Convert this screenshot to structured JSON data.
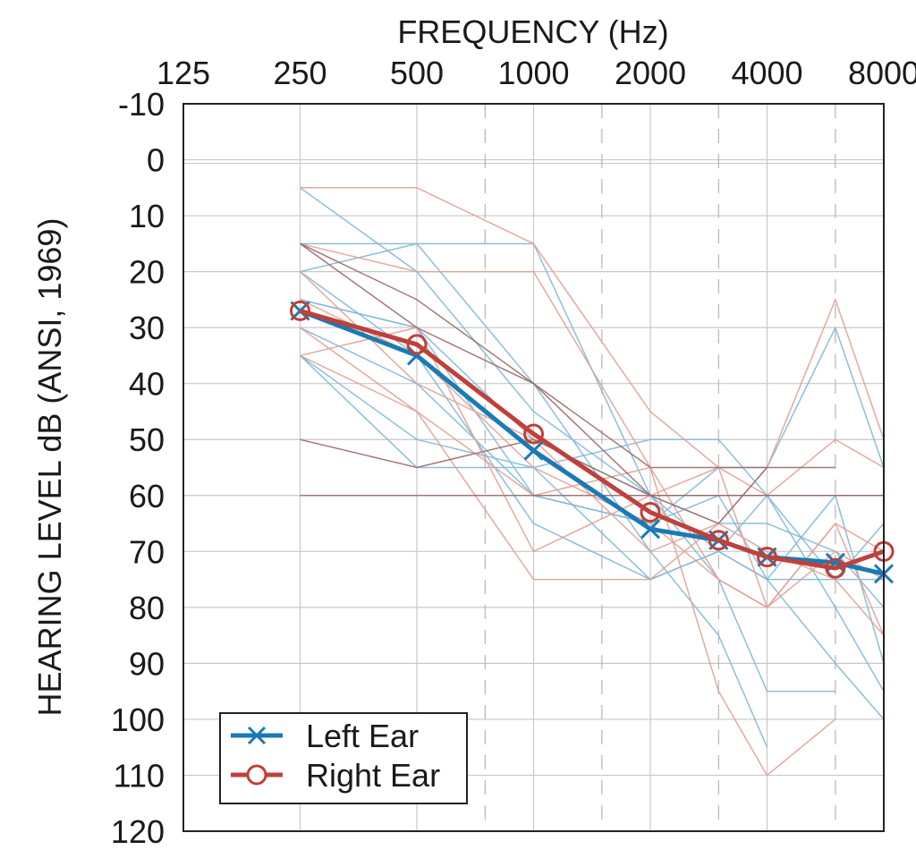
{
  "chart_data": {
    "type": "line",
    "title": "",
    "xlabel": "FREQUENCY (Hz)",
    "ylabel": "HEARING LEVEL dB (ANSI, 1969)",
    "x_scale": "log2",
    "x_range": [
      125,
      8000
    ],
    "x_ticks": [
      125,
      250,
      500,
      1000,
      2000,
      4000,
      8000
    ],
    "x_tick_labels": [
      "125",
      "250",
      "500",
      "1000",
      "2000",
      "4000",
      "8000"
    ],
    "x_minor_ticks": [
      750,
      1500,
      3000,
      6000
    ],
    "y_range": [
      -10,
      120
    ],
    "y_inverted": true,
    "y_ticks": [
      -10,
      0,
      10,
      20,
      30,
      40,
      50,
      60,
      70,
      80,
      90,
      100,
      110,
      120
    ],
    "y_tick_labels": [
      "-10",
      "0",
      "10",
      "20",
      "30",
      "40",
      "50",
      "60",
      "70",
      "80",
      "90",
      "100",
      "110",
      "120"
    ],
    "grid": true,
    "legend_position": "bottom-left",
    "x": [
      250,
      500,
      1000,
      2000,
      3000,
      4000,
      6000,
      8000
    ],
    "series": [
      {
        "name": "Left Ear",
        "color": "#1a7ab5",
        "marker": "x-icon",
        "values": [
          27,
          35,
          52,
          66,
          68,
          71,
          72,
          74
        ]
      },
      {
        "name": "Right Ear",
        "color": "#c0403a",
        "marker": "circle-icon",
        "values": [
          27,
          33,
          49,
          63,
          68,
          71,
          73,
          70
        ]
      }
    ],
    "individual_left": [
      [
        5,
        20,
        45,
        60,
        75,
        95,
        95,
        null
      ],
      [
        15,
        15,
        15,
        60,
        65,
        65,
        70,
        80
      ],
      [
        20,
        15,
        40,
        70,
        85,
        105,
        null,
        null
      ],
      [
        30,
        40,
        60,
        65,
        55,
        55,
        30,
        55
      ],
      [
        35,
        50,
        55,
        75,
        70,
        75,
        90,
        100
      ],
      [
        25,
        30,
        60,
        65,
        60,
        75,
        60,
        90
      ],
      [
        20,
        35,
        65,
        75,
        70,
        60,
        75,
        75
      ],
      [
        35,
        55,
        55,
        50,
        50,
        60,
        80,
        95
      ],
      [
        25,
        30,
        50,
        60,
        70,
        75,
        75,
        65
      ]
    ],
    "individual_right": [
      [
        5,
        5,
        15,
        45,
        55,
        80,
        65,
        85
      ],
      [
        15,
        20,
        20,
        55,
        95,
        110,
        100,
        null
      ],
      [
        30,
        45,
        75,
        75,
        65,
        55,
        25,
        50
      ],
      [
        35,
        45,
        60,
        55,
        75,
        80,
        70,
        75
      ],
      [
        20,
        40,
        50,
        70,
        65,
        70,
        75,
        85
      ],
      [
        35,
        30,
        70,
        60,
        55,
        60,
        50,
        55
      ],
      [
        25,
        35,
        55,
        65,
        75,
        80,
        65,
        70
      ]
    ],
    "individual_dark": [
      [
        15,
        25,
        40,
        60,
        65,
        55,
        55,
        null
      ],
      [
        50,
        55,
        50,
        60,
        60,
        60,
        60,
        60
      ],
      [
        60,
        60,
        60,
        60,
        60,
        60,
        60,
        60
      ],
      [
        15,
        30,
        40,
        55,
        55,
        55,
        null,
        null
      ]
    ],
    "individual_colors": {
      "left": "#7fb8d6",
      "right": "#e2a095",
      "dark": "#9a6a6a"
    }
  }
}
